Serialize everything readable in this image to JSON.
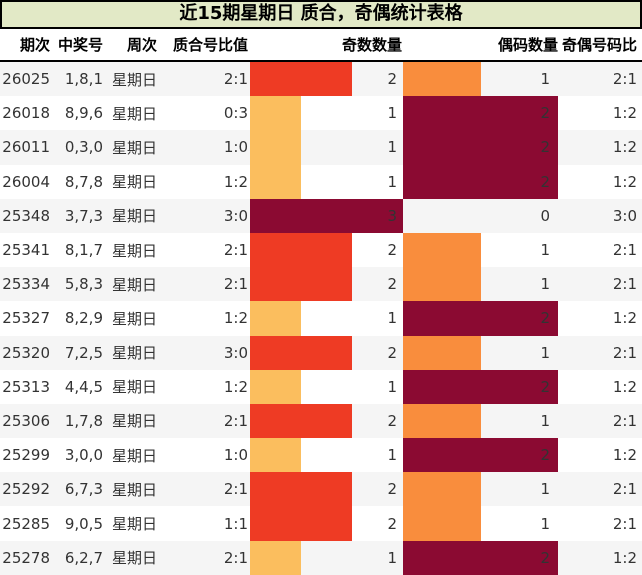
{
  "colors": {
    "title_bg": "#e2e9c6",
    "row_alt_bg": "#f5f5f5",
    "header_border": "#000000",
    "odd_bar": {
      "1": "#fbbe5e",
      "2": "#ee3b24",
      "3": "#8b0a32"
    },
    "even_bar": {
      "1": "#f98d3d",
      "2": "#8b0a32"
    }
  },
  "chart_data": {
    "type": "table",
    "title": "近15期星期日 质合，奇偶统计表格",
    "columns": [
      "期次",
      "中奖号",
      "周次",
      "质合号比值",
      "奇数数量",
      "偶码数量",
      "奇偶号码比"
    ],
    "odd_count_axis_max": 3,
    "even_count_axis_max": 2,
    "rows": [
      {
        "period": "26025",
        "winning": "1,8,1",
        "week": "星期日",
        "pc_ratio": "2:1",
        "odd": 2,
        "even": 1,
        "oe_ratio": "2:1"
      },
      {
        "period": "26018",
        "winning": "8,9,6",
        "week": "星期日",
        "pc_ratio": "0:3",
        "odd": 1,
        "even": 2,
        "oe_ratio": "1:2"
      },
      {
        "period": "26011",
        "winning": "0,3,0",
        "week": "星期日",
        "pc_ratio": "1:0",
        "odd": 1,
        "even": 2,
        "oe_ratio": "1:2"
      },
      {
        "period": "26004",
        "winning": "8,7,8",
        "week": "星期日",
        "pc_ratio": "1:2",
        "odd": 1,
        "even": 2,
        "oe_ratio": "1:2"
      },
      {
        "period": "25348",
        "winning": "3,7,3",
        "week": "星期日",
        "pc_ratio": "3:0",
        "odd": 3,
        "even": 0,
        "oe_ratio": "3:0"
      },
      {
        "period": "25341",
        "winning": "8,1,7",
        "week": "星期日",
        "pc_ratio": "2:1",
        "odd": 2,
        "even": 1,
        "oe_ratio": "2:1"
      },
      {
        "period": "25334",
        "winning": "5,8,3",
        "week": "星期日",
        "pc_ratio": "2:1",
        "odd": 2,
        "even": 1,
        "oe_ratio": "2:1"
      },
      {
        "period": "25327",
        "winning": "8,2,9",
        "week": "星期日",
        "pc_ratio": "1:2",
        "odd": 1,
        "even": 2,
        "oe_ratio": "1:2"
      },
      {
        "period": "25320",
        "winning": "7,2,5",
        "week": "星期日",
        "pc_ratio": "3:0",
        "odd": 2,
        "even": 1,
        "oe_ratio": "2:1"
      },
      {
        "period": "25313",
        "winning": "4,4,5",
        "week": "星期日",
        "pc_ratio": "1:2",
        "odd": 1,
        "even": 2,
        "oe_ratio": "1:2"
      },
      {
        "period": "25306",
        "winning": "1,7,8",
        "week": "星期日",
        "pc_ratio": "2:1",
        "odd": 2,
        "even": 1,
        "oe_ratio": "2:1"
      },
      {
        "period": "25299",
        "winning": "3,0,0",
        "week": "星期日",
        "pc_ratio": "1:0",
        "odd": 1,
        "even": 2,
        "oe_ratio": "1:2"
      },
      {
        "period": "25292",
        "winning": "6,7,3",
        "week": "星期日",
        "pc_ratio": "2:1",
        "odd": 2,
        "even": 1,
        "oe_ratio": "2:1"
      },
      {
        "period": "25285",
        "winning": "9,0,5",
        "week": "星期日",
        "pc_ratio": "1:1",
        "odd": 2,
        "even": 1,
        "oe_ratio": "2:1"
      },
      {
        "period": "25278",
        "winning": "6,2,7",
        "week": "星期日",
        "pc_ratio": "2:1",
        "odd": 1,
        "even": 2,
        "oe_ratio": "1:2"
      }
    ]
  }
}
